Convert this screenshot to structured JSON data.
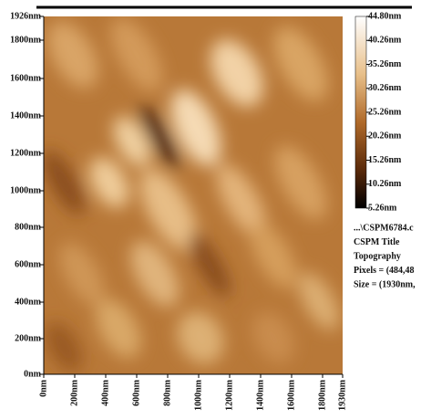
{
  "image": {
    "y_axis_labels": [
      "1926nm",
      "1800nm",
      "1600nm",
      "1400nm",
      "1200nm",
      "1000nm",
      "800nm",
      "600nm",
      "400nm",
      "200nm",
      "0nm"
    ],
    "x_axis_labels": [
      "0nm",
      "200nm",
      "400nm",
      "600nm",
      "800nm",
      "1000nm",
      "1200nm",
      "1400nm",
      "1600nm",
      "1800nm",
      "1930nm"
    ],
    "colorbar_labels": [
      "44.80nm",
      "40.26nm",
      "35.26nm",
      "30.26nm",
      "25.26nm",
      "20.26nm",
      "15.26nm",
      "10.26nm",
      "5.26nm"
    ],
    "info": [
      "...\\CSPM6784.c",
      "CSPM Title",
      "Topography",
      "Pixels = (484,48",
      "Size = (1930nm,"
    ]
  }
}
